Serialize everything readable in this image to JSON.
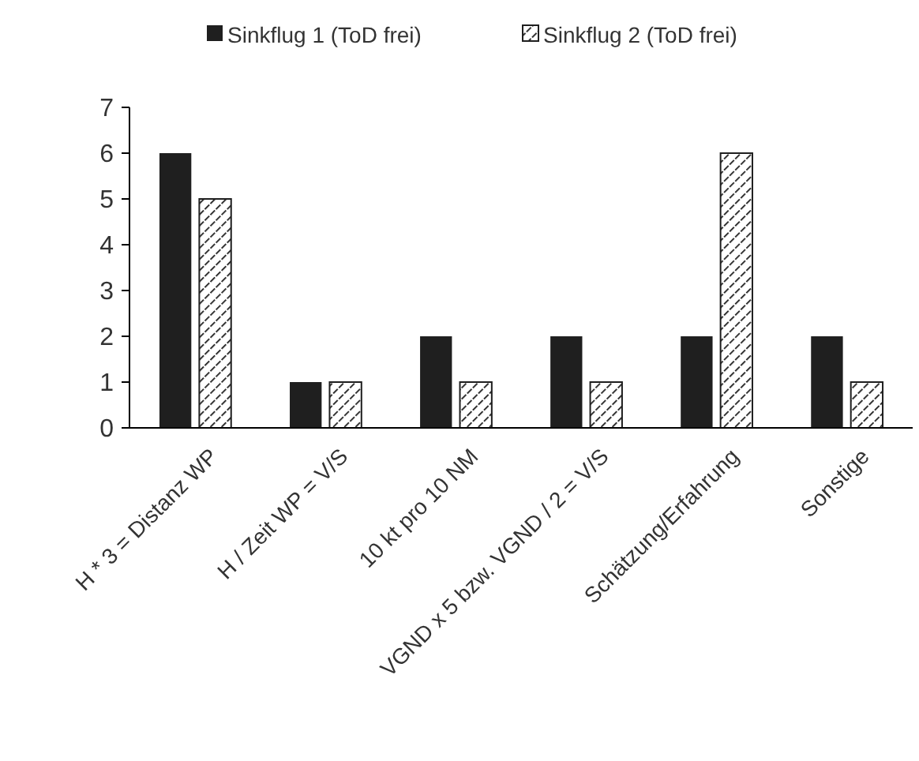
{
  "chart_data": {
    "type": "bar",
    "categories": [
      "H * 3 = Distanz WP",
      "H / Zeit WP = V/S",
      "10 kt pro 10 NM",
      "VGND x 5 bzw. VGND / 2 = V/S",
      "Schätzung/Erfahrung",
      "Sonstige"
    ],
    "series": [
      {
        "name": "Sinkflug 1 (ToD frei)",
        "color": "#1f1f1f",
        "values": [
          6,
          1,
          2,
          2,
          2,
          2
        ]
      },
      {
        "name": "Sinkflug 2 (ToD frei)",
        "color": "#1f1f1f",
        "values": [
          5,
          1,
          1,
          1,
          6,
          1
        ]
      }
    ],
    "ylim": [
      0,
      7
    ],
    "yticks": [
      0,
      1,
      2,
      3,
      4,
      5,
      6,
      7
    ],
    "legend": "top"
  }
}
